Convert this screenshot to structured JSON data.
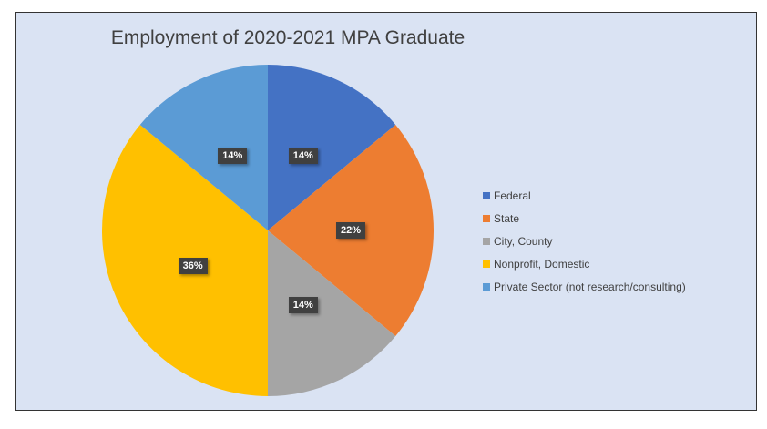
{
  "chart_data": {
    "type": "pie",
    "title": "Employment of 2020-2021 MPA Graduate",
    "categories": [
      "Federal",
      "State",
      "City, County",
      "Nonprofit, Domestic",
      "Private Sector (not research/consulting)"
    ],
    "values": [
      14,
      22,
      14,
      36,
      14
    ],
    "labels": [
      "14%",
      "22%",
      "14%",
      "36%",
      "14%"
    ],
    "colors": [
      "#4472c4",
      "#ed7d31",
      "#a5a5a5",
      "#ffc000",
      "#5b9bd5"
    ],
    "legend": "right"
  }
}
